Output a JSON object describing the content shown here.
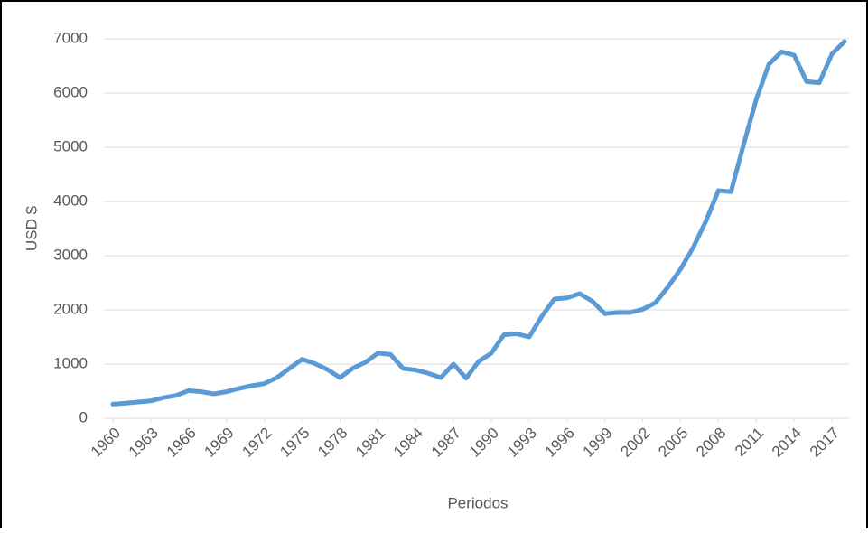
{
  "chart_data": {
    "type": "line",
    "x": [
      1960,
      1961,
      1962,
      1963,
      1964,
      1965,
      1966,
      1967,
      1968,
      1969,
      1970,
      1971,
      1972,
      1973,
      1974,
      1975,
      1976,
      1977,
      1978,
      1979,
      1980,
      1981,
      1982,
      1983,
      1984,
      1985,
      1986,
      1987,
      1988,
      1989,
      1990,
      1991,
      1992,
      1993,
      1994,
      1995,
      1996,
      1997,
      1998,
      1999,
      2000,
      2001,
      2002,
      2003,
      2004,
      2005,
      2006,
      2007,
      2008,
      2009,
      2010,
      2011,
      2012,
      2013,
      2014,
      2015,
      2016,
      2017,
      2018
    ],
    "series": [
      {
        "color": "#5b9bd5",
        "values": [
          260,
          280,
          300,
          320,
          380,
          420,
          510,
          490,
          450,
          490,
          550,
          600,
          640,
          750,
          920,
          1090,
          1010,
          900,
          750,
          920,
          1030,
          1200,
          1180,
          920,
          890,
          830,
          750,
          1000,
          740,
          1050,
          1200,
          1540,
          1560,
          1500,
          1880,
          2200,
          2220,
          2300,
          2160,
          1930,
          1950,
          1950,
          2010,
          2130,
          2420,
          2750,
          3150,
          3630,
          4200,
          4180,
          5050,
          5880,
          6530,
          6760,
          6700,
          6210,
          6190,
          6720,
          6950
        ]
      }
    ],
    "xlim": [
      1960,
      2018
    ],
    "xticks": [
      1960,
      1963,
      1966,
      1969,
      1972,
      1975,
      1978,
      1981,
      1984,
      1987,
      1990,
      1993,
      1996,
      1999,
      2002,
      2005,
      2008,
      2011,
      2014,
      2017
    ],
    "ylim": [
      0,
      7000
    ],
    "yticks": [
      0,
      1000,
      2000,
      3000,
      4000,
      5000,
      6000,
      7000
    ],
    "grid": true,
    "ylabel": "USD $",
    "xlabel": "Periodos"
  }
}
